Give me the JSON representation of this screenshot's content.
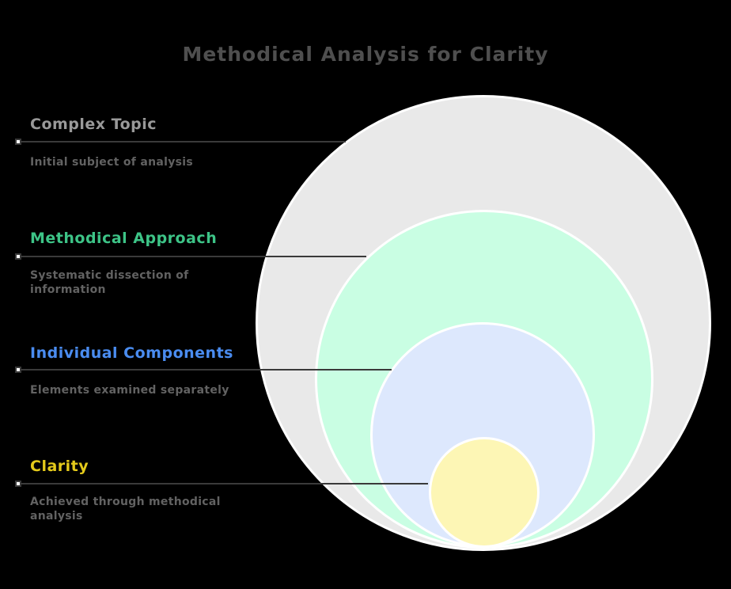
{
  "title": "Methodical Analysis for Clarity",
  "colors": {
    "background": "#000000",
    "title_text": "#4f4f4f",
    "connector_line": "#3a3a3a",
    "description_text": "#626262",
    "circle_border": "#ffffff"
  },
  "layers": [
    {
      "label": "Complex Topic",
      "description": "Initial subject of analysis",
      "label_color": "#999999",
      "circle_color": "#e9e9e9"
    },
    {
      "label": "Methodical Approach",
      "description": "Systematic dissection of information",
      "label_color": "#3dc487",
      "circle_color": "#c9fee3"
    },
    {
      "label": "Individual Components",
      "description": "Elements examined separately",
      "label_color": "#4a8cf0",
      "circle_color": "#dde8fd"
    },
    {
      "label": "Clarity",
      "description": "Achieved through methodical analysis",
      "label_color": "#e4ca1b",
      "circle_color": "#fdf6b5"
    }
  ]
}
